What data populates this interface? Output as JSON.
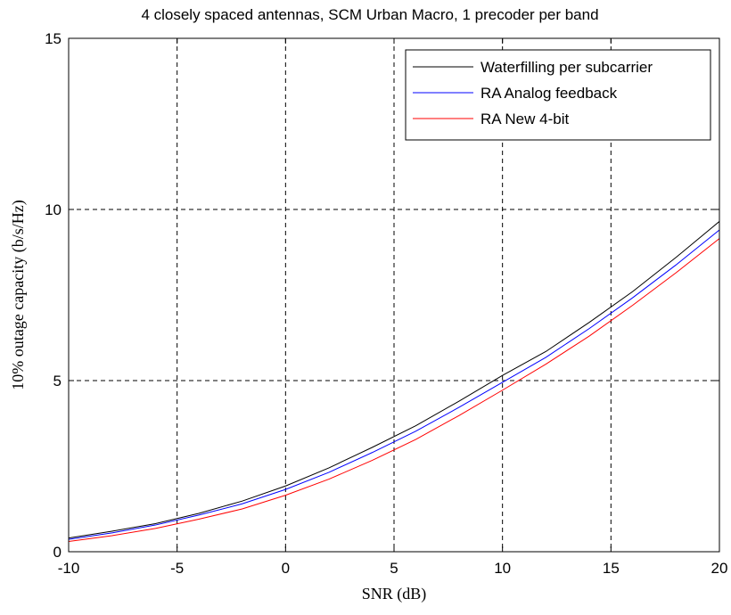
{
  "chart_data": {
    "type": "line",
    "title": "4 closely spaced antennas, SCM Urban Macro, 1 precoder per band",
    "xlabel": "SNR (dB)",
    "ylabel": "10% outage capacity (b/s/Hz)",
    "xlim": [
      -10,
      20
    ],
    "ylim": [
      0,
      15
    ],
    "xticks": [
      -10,
      -5,
      0,
      5,
      10,
      15,
      20
    ],
    "yticks": [
      0,
      5,
      10,
      15
    ],
    "x_tick_labels": [
      "-10",
      "-5",
      "0",
      "5",
      "10",
      "15",
      "20"
    ],
    "y_tick_labels": [
      "0",
      "5",
      "10",
      "15"
    ],
    "grid": true,
    "legend_position": "top-right",
    "x": [
      -10,
      -8,
      -6,
      -4,
      -2,
      0,
      2,
      4,
      6,
      8,
      10,
      12,
      14,
      16,
      18,
      20
    ],
    "series": [
      {
        "name": "Waterfilling per subcarrier",
        "color": "#000000",
        "values": [
          0.4,
          0.6,
          0.82,
          1.12,
          1.48,
          1.92,
          2.45,
          3.05,
          3.68,
          4.4,
          5.15,
          5.85,
          6.7,
          7.6,
          8.6,
          9.65
        ]
      },
      {
        "name": "RA Analog feedback",
        "color": "#0000ff",
        "values": [
          0.36,
          0.55,
          0.78,
          1.07,
          1.4,
          1.82,
          2.32,
          2.9,
          3.52,
          4.22,
          4.95,
          5.68,
          6.52,
          7.42,
          8.38,
          9.4
        ]
      },
      {
        "name": "RA  New 4-bit",
        "color": "#ff0000",
        "values": [
          0.3,
          0.47,
          0.68,
          0.95,
          1.25,
          1.65,
          2.12,
          2.67,
          3.28,
          3.98,
          4.72,
          5.48,
          6.3,
          7.2,
          8.15,
          9.15
        ]
      }
    ]
  }
}
